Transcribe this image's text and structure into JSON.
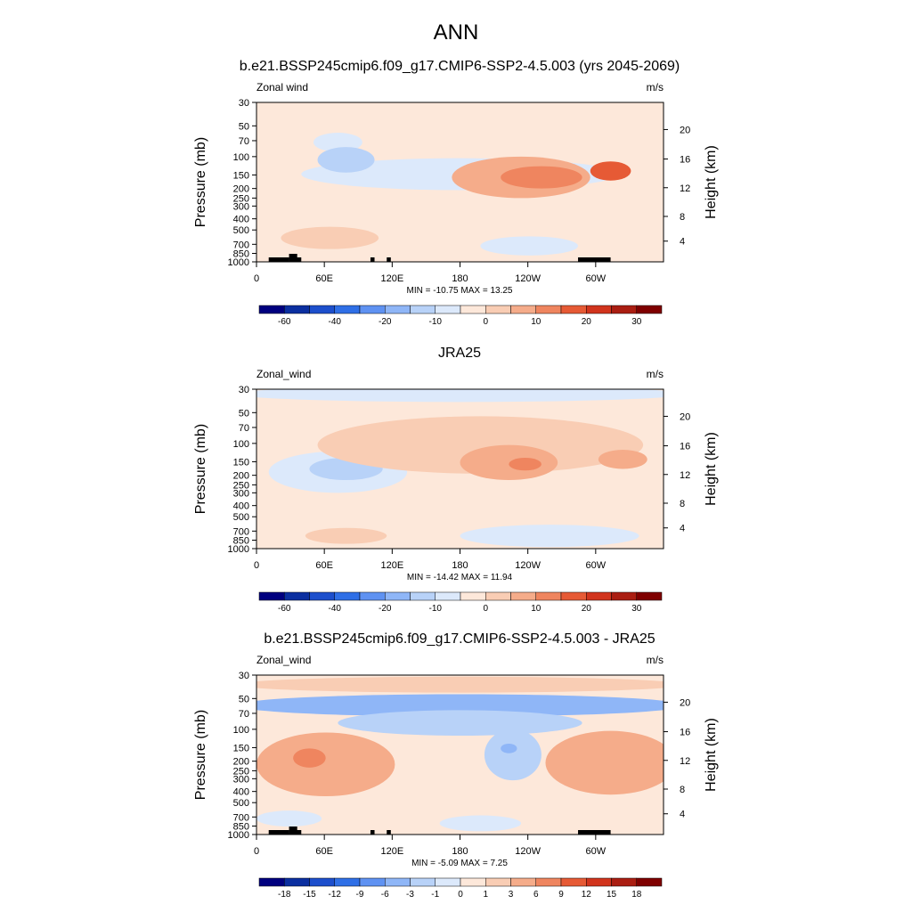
{
  "page": {
    "title": "ANN"
  },
  "chart_data": [
    {
      "type": "heatmap",
      "title": "b.e21.BSSP245cmip6.f09_g17.CMIP6-SSP2-4.5.003 (yrs 2045-2069)",
      "left_label": "Zonal wind",
      "units": "m/s",
      "ylabel": "Pressure (mb)",
      "ylabel_right": "Height (km)",
      "pressure_ticks": [
        "30",
        "50",
        "70",
        "100",
        "150",
        "200",
        "250",
        "300",
        "400",
        "500",
        "700",
        "850",
        "1000"
      ],
      "height_ticks": [
        "20",
        "16",
        "12",
        "8",
        "4"
      ],
      "x_ticks": [
        "0",
        "60E",
        "120E",
        "180",
        "120W",
        "60W"
      ],
      "stats": "MIN = -10.75  MAX =  13.25",
      "colorbar_labels": [
        "-60",
        "-40",
        "-20",
        "-10",
        "0",
        "10",
        "20",
        "30"
      ],
      "colorbar_colors": [
        "#00007f",
        "#0b2fa0",
        "#1d4fcc",
        "#2f6fe6",
        "#5f92f2",
        "#8fb6f7",
        "#b8d2f8",
        "#dce9fb",
        "#fde8da",
        "#f9cdb4",
        "#f5ac8a",
        "#ef855f",
        "#e65a35",
        "#d1341d",
        "#aa1e12",
        "#7f0000"
      ],
      "min": -10.75,
      "max": 13.25,
      "features": [
        {
          "level": -1,
          "x": 0.5,
          "y": 0.45,
          "rx": 0.39,
          "ry": 0.1,
          "note": "upper background"
        },
        {
          "level": -1,
          "x": 0.2,
          "y": 0.25,
          "rx": 0.06,
          "ry": 0.06
        },
        {
          "level": -2,
          "x": 0.22,
          "y": 0.36,
          "rx": 0.07,
          "ry": 0.08
        },
        {
          "level": 2,
          "x": 0.65,
          "y": 0.47,
          "rx": 0.17,
          "ry": 0.13
        },
        {
          "level": 3,
          "x": 0.7,
          "y": 0.47,
          "rx": 0.1,
          "ry": 0.07
        },
        {
          "level": 4,
          "x": 0.87,
          "y": 0.43,
          "rx": 0.05,
          "ry": 0.06
        },
        {
          "level": 1,
          "x": 0.18,
          "y": 0.85,
          "rx": 0.12,
          "ry": 0.07
        },
        {
          "level": -1,
          "x": 0.67,
          "y": 0.9,
          "rx": 0.12,
          "ry": 0.06
        }
      ]
    },
    {
      "type": "heatmap",
      "title": "JRA25",
      "left_label": "Zonal_wind",
      "units": "m/s",
      "ylabel": "Pressure (mb)",
      "ylabel_right": "Height (km)",
      "pressure_ticks": [
        "30",
        "50",
        "70",
        "100",
        "150",
        "200",
        "250",
        "300",
        "400",
        "500",
        "700",
        "850",
        "1000"
      ],
      "height_ticks": [
        "20",
        "16",
        "12",
        "8",
        "4"
      ],
      "x_ticks": [
        "0",
        "60E",
        "120E",
        "180",
        "120W",
        "60W"
      ],
      "stats": "MIN = -14.42  MAX =  11.94",
      "colorbar_labels": [
        "-60",
        "-40",
        "-20",
        "-10",
        "0",
        "10",
        "20",
        "30"
      ],
      "colorbar_colors": [
        "#00007f",
        "#0b2fa0",
        "#1d4fcc",
        "#2f6fe6",
        "#5f92f2",
        "#8fb6f7",
        "#b8d2f8",
        "#dce9fb",
        "#fde8da",
        "#f9cdb4",
        "#f5ac8a",
        "#ef855f",
        "#e65a35",
        "#d1341d",
        "#aa1e12",
        "#7f0000"
      ],
      "min": -14.42,
      "max": 11.94,
      "features": [
        {
          "level": -1,
          "x": 0.5,
          "y": 0.03,
          "rx": 0.55,
          "ry": 0.05
        },
        {
          "level": -1,
          "x": 0.2,
          "y": 0.52,
          "rx": 0.17,
          "ry": 0.13
        },
        {
          "level": -2,
          "x": 0.22,
          "y": 0.5,
          "rx": 0.09,
          "ry": 0.07
        },
        {
          "level": 1,
          "x": 0.55,
          "y": 0.35,
          "rx": 0.4,
          "ry": 0.18
        },
        {
          "level": 2,
          "x": 0.62,
          "y": 0.46,
          "rx": 0.12,
          "ry": 0.11
        },
        {
          "level": 3,
          "x": 0.66,
          "y": 0.47,
          "rx": 0.04,
          "ry": 0.04
        },
        {
          "level": 2,
          "x": 0.9,
          "y": 0.44,
          "rx": 0.06,
          "ry": 0.06
        },
        {
          "level": 1,
          "x": 0.22,
          "y": 0.92,
          "rx": 0.1,
          "ry": 0.05
        },
        {
          "level": -1,
          "x": 0.72,
          "y": 0.92,
          "rx": 0.22,
          "ry": 0.07
        }
      ]
    },
    {
      "type": "heatmap",
      "title": "b.e21.BSSP245cmip6.f09_g17.CMIP6-SSP2-4.5.003 - JRA25",
      "left_label": "Zonal_wind",
      "units": "m/s",
      "ylabel": "Pressure (mb)",
      "ylabel_right": "Height (km)",
      "pressure_ticks": [
        "30",
        "50",
        "70",
        "100",
        "150",
        "200",
        "250",
        "300",
        "400",
        "500",
        "700",
        "850",
        "1000"
      ],
      "height_ticks": [
        "20",
        "16",
        "12",
        "8",
        "4"
      ],
      "x_ticks": [
        "0",
        "60E",
        "120E",
        "180",
        "120W",
        "60W"
      ],
      "stats": "MIN = -5.09  MAX =  7.25",
      "colorbar_labels": [
        "-18",
        "-15",
        "-12",
        "-9",
        "-6",
        "-3",
        "-1",
        "0",
        "1",
        "3",
        "6",
        "9",
        "12",
        "15",
        "18"
      ],
      "colorbar_colors": [
        "#00007f",
        "#0b2fa0",
        "#1d4fcc",
        "#2f6fe6",
        "#5f92f2",
        "#8fb6f7",
        "#b8d2f8",
        "#dce9fb",
        "#fde8da",
        "#f9cdb4",
        "#f5ac8a",
        "#ef855f",
        "#e65a35",
        "#d1341d",
        "#aa1e12",
        "#7f0000"
      ],
      "min": -5.09,
      "max": 7.25,
      "features": [
        {
          "level": 1,
          "x": 0.5,
          "y": 0.06,
          "rx": 0.55,
          "ry": 0.05
        },
        {
          "level": -3,
          "x": 0.5,
          "y": 0.19,
          "rx": 0.55,
          "ry": 0.07
        },
        {
          "level": -2,
          "x": 0.5,
          "y": 0.3,
          "rx": 0.3,
          "ry": 0.08
        },
        {
          "level": -2,
          "x": 0.63,
          "y": 0.5,
          "rx": 0.07,
          "ry": 0.16
        },
        {
          "level": -3,
          "x": 0.62,
          "y": 0.46,
          "rx": 0.02,
          "ry": 0.03
        },
        {
          "level": 2,
          "x": 0.17,
          "y": 0.56,
          "rx": 0.17,
          "ry": 0.2
        },
        {
          "level": 3,
          "x": 0.13,
          "y": 0.52,
          "rx": 0.04,
          "ry": 0.06
        },
        {
          "level": 2,
          "x": 0.87,
          "y": 0.55,
          "rx": 0.16,
          "ry": 0.2
        },
        {
          "level": -1,
          "x": 0.08,
          "y": 0.9,
          "rx": 0.08,
          "ry": 0.05
        },
        {
          "level": -1,
          "x": 0.55,
          "y": 0.93,
          "rx": 0.1,
          "ry": 0.05
        }
      ]
    }
  ]
}
